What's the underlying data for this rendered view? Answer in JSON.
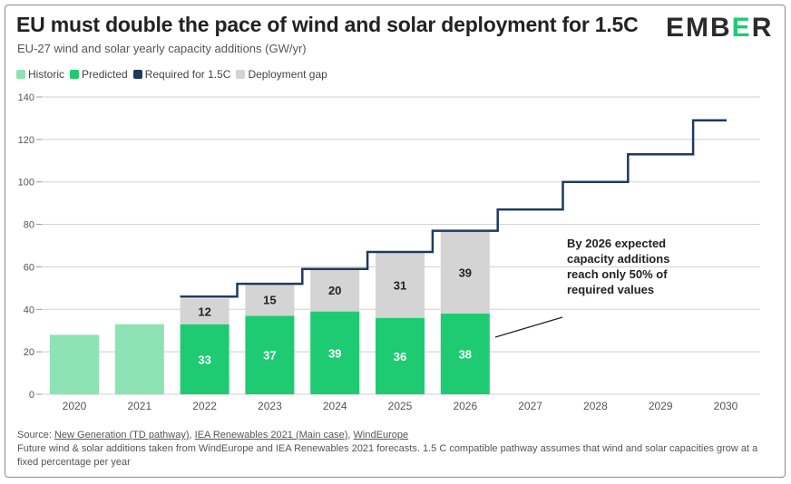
{
  "header": {
    "title": "EU must double the pace of wind and solar deployment for 1.5C",
    "subtitle": "EU-27 wind and solar yearly capacity additions (GW/yr)",
    "logo_pre": "EMB",
    "logo_accent": "E",
    "logo_post": "R"
  },
  "legend": [
    {
      "label": "Historic",
      "color": "#8de3b3"
    },
    {
      "label": "Predicted",
      "color": "#1ecb72"
    },
    {
      "label": "Required for 1.5C",
      "color": "#1f3a5f"
    },
    {
      "label": "Deployment gap",
      "color": "#d4d4d4"
    }
  ],
  "colors": {
    "historic": "#8de3b3",
    "predicted": "#1ecb72",
    "required": "#1f3a5f",
    "gap": "#d4d4d4",
    "grid": "#cfcfcf"
  },
  "chart_data": {
    "type": "bar",
    "title": "EU must double the pace of wind and solar deployment for 1.5C",
    "subtitle": "EU-27 wind and solar yearly capacity additions (GW/yr)",
    "xlabel": "",
    "ylabel": "",
    "ylim": [
      0,
      140
    ],
    "yticks": [
      0,
      20,
      40,
      60,
      80,
      100,
      120,
      140
    ],
    "categories": [
      "2020",
      "2021",
      "2022",
      "2023",
      "2024",
      "2025",
      "2026",
      "2027",
      "2028",
      "2029",
      "2030"
    ],
    "series": [
      {
        "name": "Historic",
        "values": [
          28,
          33,
          null,
          null,
          null,
          null,
          null,
          null,
          null,
          null,
          null
        ]
      },
      {
        "name": "Predicted",
        "values": [
          null,
          null,
          33,
          37,
          39,
          36,
          38,
          null,
          null,
          null,
          null
        ]
      },
      {
        "name": "Deployment gap",
        "values": [
          null,
          null,
          12,
          15,
          20,
          31,
          39,
          null,
          null,
          null,
          null
        ]
      },
      {
        "name": "Required for 1.5C",
        "type": "step-line",
        "values": [
          null,
          null,
          46,
          52,
          59,
          67,
          77,
          87,
          100,
          113,
          129
        ]
      }
    ],
    "data_labels": {
      "predicted": [
        "33",
        "37",
        "39",
        "36",
        "38"
      ],
      "gap": [
        "12",
        "15",
        "20",
        "31",
        "39"
      ]
    },
    "annotation": "By 2026 expected capacity additions reach only 50% of required values"
  },
  "footer": {
    "source_prefix": "Source: ",
    "source_1": "New Generation (TD pathway)",
    "sep_1": ", ",
    "source_2": "IEA Renewables 2021 (Main case)",
    "sep_2": ", ",
    "source_3": "WindEurope",
    "note": "Future wind & solar additions taken from WindEurope and IEA Renewables 2021 forecasts. 1.5 C compatible pathway assumes that wind and solar capacities grow at a fixed percentage per year"
  }
}
